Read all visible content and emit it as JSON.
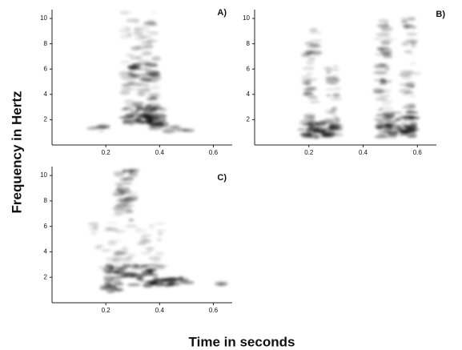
{
  "figure": {
    "ylabel": "Frequency in Hertz",
    "xlabel": "Time in seconds"
  },
  "chart_data": [
    {
      "type": "spectrogram",
      "label": "A)",
      "xlim": [
        0,
        0.67
      ],
      "xticks": [
        0.2,
        0.4,
        0.6
      ],
      "ylim": [
        0,
        10.7
      ],
      "yticks": [
        2,
        4,
        6,
        8,
        10
      ]
    },
    {
      "type": "spectrogram",
      "label": "B)",
      "xlim": [
        0,
        0.67
      ],
      "xticks": [
        0.2,
        0.4,
        0.6
      ],
      "ylim": [
        0,
        10.7
      ],
      "yticks": [
        2,
        4,
        6,
        8,
        10
      ]
    },
    {
      "type": "spectrogram",
      "label": "C)",
      "xlim": [
        0,
        0.67
      ],
      "xticks": [
        0.2,
        0.4,
        0.6
      ],
      "ylim": [
        0,
        10.7
      ],
      "yticks": [
        2,
        4,
        6,
        8,
        10
      ]
    }
  ]
}
